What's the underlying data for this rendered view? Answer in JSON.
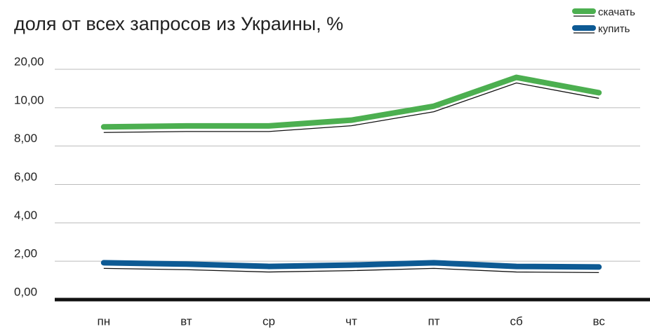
{
  "chart_data": {
    "type": "line",
    "title": "доля от всех запросов из Украины, %",
    "categories": [
      "пн",
      "вт",
      "ср",
      "чт",
      "пт",
      "сб",
      "вс"
    ],
    "series": [
      {
        "name": "скачать",
        "color": "#4caf50",
        "values": [
          9.0,
          9.05,
          9.05,
          9.35,
          10.4,
          17.9,
          13.9
        ]
      },
      {
        "name": "купить",
        "color": "#0d5a94",
        "values": [
          1.92,
          1.85,
          1.73,
          1.8,
          1.92,
          1.73,
          1.7
        ]
      }
    ],
    "ylim": [
      0,
      20
    ],
    "yticks": [
      {
        "value": 0,
        "label": "0,00"
      },
      {
        "value": 2,
        "label": "2,00"
      },
      {
        "value": 4,
        "label": "4,00"
      },
      {
        "value": 6,
        "label": "6,00"
      },
      {
        "value": 8,
        "label": "8,00"
      },
      {
        "value": 10,
        "label": "10,00"
      },
      {
        "value": 20,
        "label": "20,00"
      }
    ],
    "grid": true
  }
}
